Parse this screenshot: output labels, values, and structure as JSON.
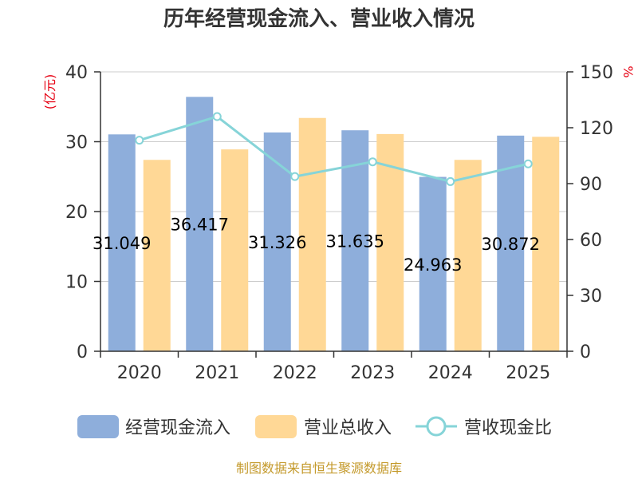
{
  "chart_data": {
    "type": "bar",
    "title": "历年经营现金流入、营业收入情况",
    "categories": [
      "2020",
      "2021",
      "2022",
      "2023",
      "2024",
      "2025"
    ],
    "y_left": {
      "unit": "(亿元)",
      "ylim": [
        0,
        40
      ],
      "ticks": [
        "0",
        "10",
        "20",
        "30",
        "40"
      ]
    },
    "y_right": {
      "unit": "%",
      "ylim": [
        0,
        150
      ],
      "ticks": [
        "0",
        "30",
        "60",
        "90",
        "120",
        "150"
      ]
    },
    "series": [
      {
        "name": "经营现金流入",
        "kind": "bar",
        "axis": "left",
        "color": "#8eaedb",
        "values": [
          31.049,
          36.417,
          31.326,
          31.635,
          24.963,
          30.872
        ],
        "labels": [
          "31.049",
          "36.417",
          "31.326",
          "31.635",
          "24.963",
          "30.872"
        ]
      },
      {
        "name": "营业总收入",
        "kind": "bar",
        "axis": "left",
        "color": "#ffd896",
        "values": [
          27.4,
          28.9,
          33.4,
          31.1,
          27.4,
          30.7
        ]
      },
      {
        "name": "营收现金比",
        "kind": "line",
        "axis": "right",
        "color": "#86d4d8",
        "values": [
          113.3,
          126.0,
          93.8,
          101.7,
          91.1,
          100.6
        ]
      }
    ],
    "grid": true,
    "legend_position": "bottom"
  },
  "footer": {
    "source": "制图数据来自恒生聚源数据库"
  }
}
